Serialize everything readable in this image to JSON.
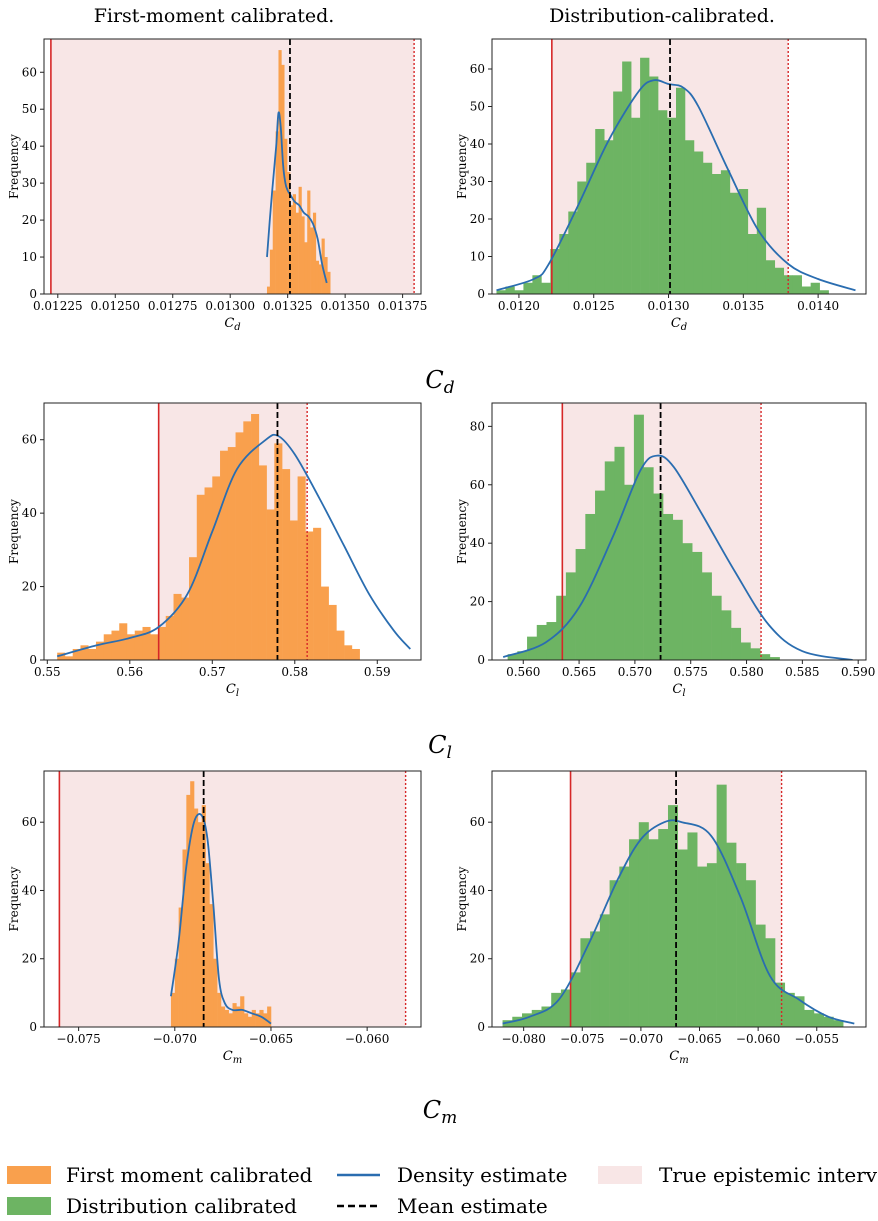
{
  "column_titles": [
    "First-moment calibrated.",
    "Distribution-calibrated."
  ],
  "row_labels": [
    "C_d",
    "C_l",
    "C_m"
  ],
  "legend": {
    "items": [
      {
        "label": "First moment calibrated",
        "color": "#f9a04d",
        "kind": "patch"
      },
      {
        "label": "Distribution calibrated",
        "color": "#6db463",
        "kind": "patch"
      },
      {
        "label": "Density estimate",
        "color": "#2a6db0",
        "kind": "line"
      },
      {
        "label": "Mean estimate",
        "color": "#000000",
        "kind": "dashed"
      },
      {
        "label": "True epistemic interval",
        "color": "#f8e6e6",
        "kind": "patch"
      }
    ]
  },
  "colors": {
    "first_moment": "#f9a04d",
    "distribution": "#6db463",
    "density": "#2a6db0",
    "mean": "#000000",
    "interval_fill": "#f8e6e6",
    "interval_line": "#d62728"
  },
  "chart_data": [
    {
      "type": "bar",
      "panel": "Cd-first-moment",
      "xlabel": "C_d",
      "ylabel": "Frequency",
      "xlim": [
        0.01219,
        0.01383
      ],
      "ylim": [
        0,
        69
      ],
      "xticks": [
        0.01225,
        0.0125,
        0.01275,
        0.013,
        0.01325,
        0.0135,
        0.01375
      ],
      "xtick_labels": [
        "0.01225",
        "0.01250",
        "0.01275",
        "0.01300",
        "0.01325",
        "0.01350",
        "0.01375"
      ],
      "yticks": [
        0,
        10,
        20,
        30,
        40,
        50,
        60
      ],
      "interval": [
        0.01222,
        0.0138
      ],
      "mean": 0.01326,
      "bins": {
        "start": 0.01316,
        "width": 1.25e-05,
        "counts": [
          2,
          12,
          28,
          44,
          66,
          62,
          42,
          33,
          24,
          27,
          22,
          29,
          21,
          14,
          28,
          18,
          22,
          9,
          8,
          15,
          10,
          6
        ]
      },
      "density": {
        "x": [
          0.01316,
          0.01318,
          0.0132,
          0.01321,
          0.01322,
          0.01323,
          0.01324,
          0.01325,
          0.01326,
          0.01328,
          0.0133,
          0.01332,
          0.01334,
          0.01336,
          0.01338,
          0.0134,
          0.01342
        ],
        "y": [
          10,
          26,
          40,
          49,
          45,
          35,
          30,
          28,
          27,
          25,
          24,
          22,
          21,
          19,
          15,
          8,
          3
        ]
      }
    },
    {
      "type": "bar",
      "panel": "Cd-distribution",
      "xlabel": "C_d",
      "ylabel": "Frequency",
      "xlim": [
        0.01182,
        0.01432
      ],
      "ylim": [
        0,
        68
      ],
      "xticks": [
        0.012,
        0.0125,
        0.013,
        0.0135,
        0.014
      ],
      "xtick_labels": [
        "0.0120",
        "0.0125",
        "0.0130",
        "0.0135",
        "0.0140"
      ],
      "yticks": [
        0,
        10,
        20,
        30,
        40,
        50,
        60
      ],
      "interval": [
        0.01222,
        0.0138
      ],
      "mean": 0.01301,
      "bins": {
        "start": 0.01185,
        "width": 6e-05,
        "counts": [
          1,
          2,
          1,
          3,
          5,
          3,
          12,
          16,
          22,
          30,
          35,
          44,
          41,
          54,
          62,
          47,
          63,
          58,
          49,
          47,
          55,
          41,
          38,
          35,
          32,
          33,
          27,
          28,
          16,
          23,
          9,
          7,
          5,
          5,
          2,
          3,
          1
        ]
      },
      "density": {
        "x": [
          0.01185,
          0.0121,
          0.0122,
          0.0124,
          0.0126,
          0.0128,
          0.0129,
          0.013,
          0.0131,
          0.0132,
          0.0134,
          0.0136,
          0.0138,
          0.014,
          0.01425
        ],
        "y": [
          1,
          4,
          8,
          24,
          41,
          54,
          57,
          56,
          55,
          50,
          33,
          17,
          8,
          4,
          1
        ]
      }
    },
    {
      "type": "bar",
      "panel": "Cl-first-moment",
      "xlabel": "C_l",
      "ylabel": "Frequency",
      "xlim": [
        0.5496,
        0.5953
      ],
      "ylim": [
        0,
        70
      ],
      "xticks": [
        0.55,
        0.56,
        0.57,
        0.58,
        0.59
      ],
      "xtick_labels": [
        "0.55",
        "0.56",
        "0.57",
        "0.58",
        "0.59"
      ],
      "yticks": [
        0,
        20,
        40,
        60
      ],
      "interval": [
        0.5635,
        0.5815
      ],
      "mean": 0.5779,
      "bins": {
        "start": 0.5512,
        "width": 0.00094,
        "counts": [
          2,
          1,
          3,
          4,
          3,
          5,
          7,
          8,
          10,
          7,
          8,
          9,
          7,
          9,
          12,
          18,
          17,
          28,
          45,
          47,
          50,
          57,
          58,
          62,
          65,
          67,
          53,
          41,
          59,
          52,
          38,
          50,
          35,
          36,
          20,
          15,
          8,
          4,
          3
        ]
      },
      "density": {
        "x": [
          0.5512,
          0.556,
          0.56,
          0.5635,
          0.567,
          0.57,
          0.573,
          0.5765,
          0.578,
          0.58,
          0.583,
          0.586,
          0.589,
          0.592,
          0.594
        ],
        "y": [
          1,
          4,
          6,
          9,
          18,
          35,
          52,
          60,
          61,
          56,
          44,
          31,
          18,
          8,
          3
        ]
      }
    },
    {
      "type": "bar",
      "panel": "Cl-distribution",
      "xlabel": "C_l",
      "ylabel": "Frequency",
      "xlim": [
        0.5572,
        0.5907
      ],
      "ylim": [
        0,
        88
      ],
      "xticks": [
        0.56,
        0.565,
        0.57,
        0.575,
        0.58,
        0.585,
        0.59
      ],
      "xtick_labels": [
        "0.560",
        "0.565",
        "0.570",
        "0.575",
        "0.580",
        "0.585",
        "0.590"
      ],
      "yticks": [
        0,
        20,
        40,
        60,
        80
      ],
      "interval": [
        0.5635,
        0.5813
      ],
      "mean": 0.5723,
      "bins": {
        "start": 0.5586,
        "width": 0.00087,
        "counts": [
          2,
          3,
          8,
          12,
          13,
          22,
          30,
          38,
          50,
          58,
          68,
          73,
          60,
          84,
          66,
          57,
          50,
          48,
          40,
          37,
          30,
          22,
          17,
          11,
          6,
          4,
          2,
          1
        ]
      },
      "density": {
        "x": [
          0.5582,
          0.562,
          0.565,
          0.568,
          0.5705,
          0.572,
          0.5735,
          0.576,
          0.579,
          0.582,
          0.585,
          0.5895
        ],
        "y": [
          1,
          6,
          18,
          42,
          65,
          70,
          66,
          50,
          30,
          12,
          3,
          0
        ]
      }
    },
    {
      "type": "bar",
      "panel": "Cm-first-moment",
      "xlabel": "C_m",
      "ylabel": "Frequency",
      "xlim": [
        -0.0768,
        -0.0572
      ],
      "ylim": [
        0,
        75
      ],
      "xticks": [
        -0.075,
        -0.07,
        -0.065,
        -0.06
      ],
      "xtick_labels": [
        "−0.075",
        "−0.070",
        "−0.065",
        "−0.060"
      ],
      "yticks": [
        0,
        20,
        40,
        60
      ],
      "interval": [
        -0.076,
        -0.058
      ],
      "mean": -0.0685,
      "bins": {
        "start": -0.0702,
        "width": 0.0002,
        "counts": [
          10,
          20,
          35,
          52,
          68,
          72,
          64,
          60,
          65,
          48,
          36,
          20,
          10,
          6,
          5,
          4,
          7,
          6,
          9,
          4,
          3,
          5,
          4,
          5,
          4,
          6
        ]
      },
      "density": {
        "x": [
          -0.0702,
          -0.0698,
          -0.0694,
          -0.069,
          -0.0686,
          -0.0683,
          -0.068,
          -0.0677,
          -0.0674,
          -0.067,
          -0.0665,
          -0.066,
          -0.0655,
          -0.065
        ],
        "y": [
          9,
          25,
          47,
          60,
          62,
          55,
          36,
          14,
          7,
          5,
          5,
          4,
          3,
          1
        ]
      }
    },
    {
      "type": "bar",
      "panel": "Cm-distribution",
      "xlabel": "C_m",
      "ylabel": "Frequency",
      "xlim": [
        -0.0827,
        -0.0508
      ],
      "ylim": [
        0,
        75
      ],
      "xticks": [
        -0.08,
        -0.075,
        -0.07,
        -0.065,
        -0.06,
        -0.055
      ],
      "xtick_labels": [
        "−0.080",
        "−0.075",
        "−0.070",
        "−0.065",
        "−0.060",
        "−0.055"
      ],
      "yticks": [
        0,
        20,
        40,
        60
      ],
      "interval": [
        -0.076,
        -0.058
      ],
      "mean": -0.067,
      "bins": {
        "start": -0.0818,
        "width": 0.00083,
        "counts": [
          2,
          3,
          4,
          5,
          6,
          10,
          11,
          16,
          26,
          28,
          33,
          43,
          47,
          55,
          60,
          55,
          58,
          65,
          52,
          57,
          47,
          48,
          71,
          54,
          48,
          43,
          30,
          26,
          13,
          10,
          9,
          5,
          4,
          3,
          2
        ]
      },
      "density": {
        "x": [
          -0.0818,
          -0.0795,
          -0.077,
          -0.0745,
          -0.072,
          -0.07,
          -0.068,
          -0.0665,
          -0.064,
          -0.0615,
          -0.059,
          -0.0565,
          -0.054,
          -0.0518
        ],
        "y": [
          1,
          3,
          8,
          24,
          43,
          55,
          60,
          60,
          56,
          38,
          15,
          8,
          3,
          1
        ]
      }
    }
  ]
}
